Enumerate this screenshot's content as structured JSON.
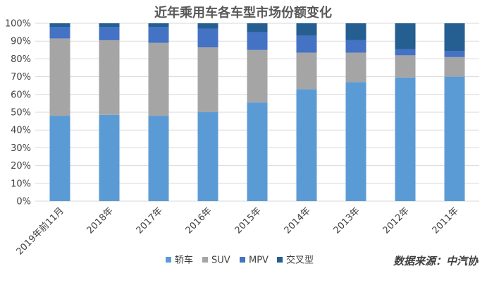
{
  "chart_data": {
    "type": "bar",
    "stacked": true,
    "title": "近年乘用车各车型市场份额变化",
    "xlabel": "",
    "ylabel": "",
    "ylim": [
      0,
      100
    ],
    "y_tick_labels": [
      "0%",
      "10%",
      "20%",
      "30%",
      "40%",
      "50%",
      "60%",
      "70%",
      "80%",
      "90%",
      "100%"
    ],
    "categories": [
      "2019年前11月",
      "2018年",
      "2017年",
      "2016年",
      "2015年",
      "2014年",
      "2013年",
      "2012年",
      "2011年"
    ],
    "series": [
      {
        "name": "轿车",
        "color": "#5b9bd5",
        "values": [
          48,
          48.5,
          48,
          50,
          55.5,
          63,
          67,
          69.5,
          70
        ]
      },
      {
        "name": "SUV",
        "color": "#a5a5a5",
        "values": [
          43.5,
          42,
          41,
          36.5,
          29.5,
          20.5,
          16.5,
          12.5,
          11
        ]
      },
      {
        "name": "MPV",
        "color": "#4472c4",
        "values": [
          6.5,
          7.5,
          9,
          10.5,
          10,
          9.5,
          7,
          3.5,
          3.5
        ]
      },
      {
        "name": "交叉型",
        "color": "#255e91",
        "values": [
          2,
          2,
          2,
          3,
          5,
          7,
          9.5,
          14.5,
          15.5
        ]
      }
    ],
    "grid": true,
    "legend_position": "bottom",
    "source": "数据来源：中汽协"
  }
}
